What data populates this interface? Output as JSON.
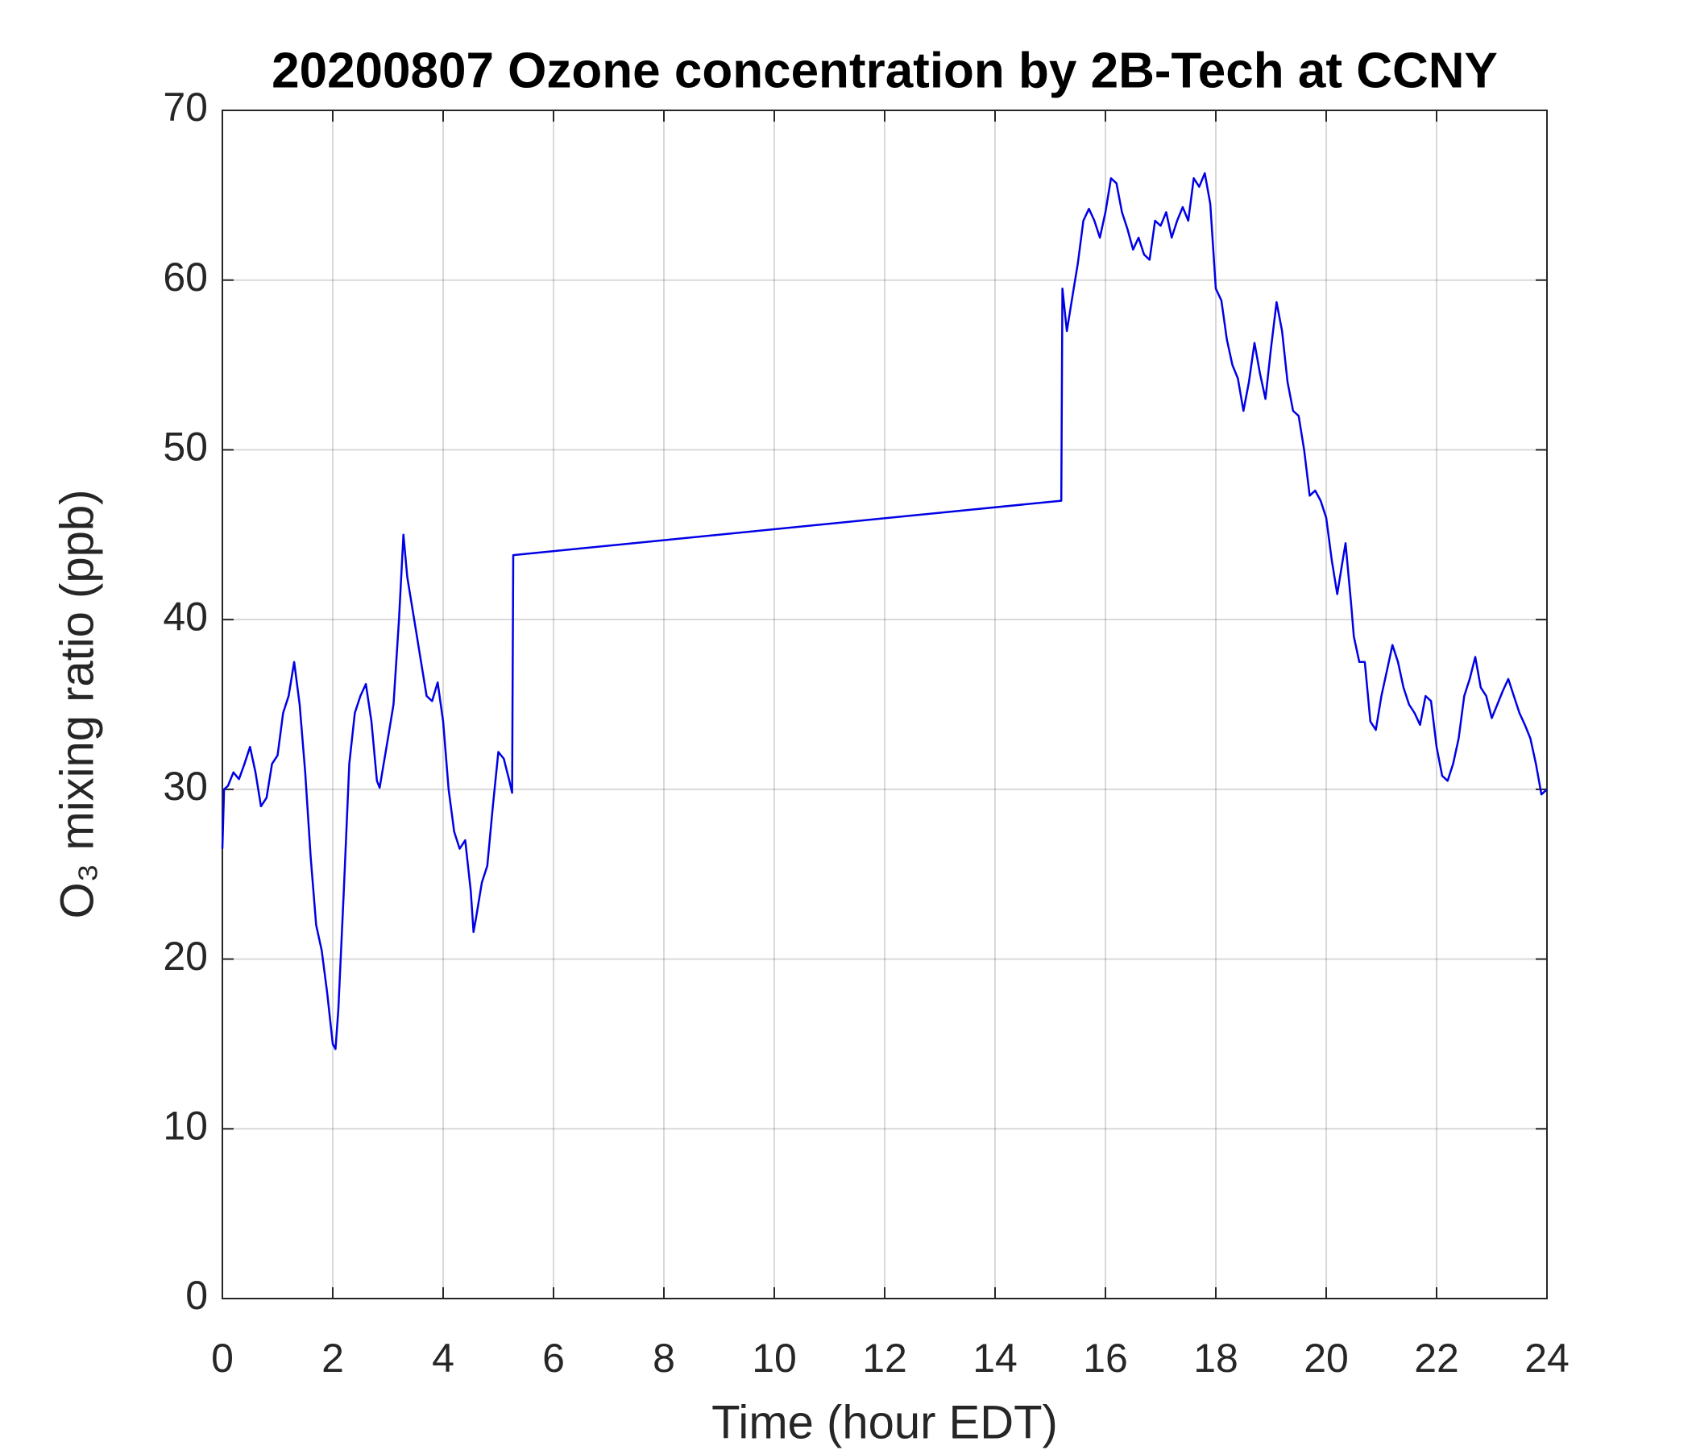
{
  "chart_data": {
    "type": "line",
    "title": "20200807 Ozone concentration by 2B-Tech at CCNY",
    "x_label": "Time (hour EDT)",
    "y_label": "O₃ mixing ratio (ppb)",
    "xlim": [
      0,
      24
    ],
    "xticks": [
      0,
      2,
      4,
      6,
      8,
      10,
      12,
      14,
      16,
      18,
      20,
      22,
      24
    ],
    "ylim": [
      0,
      70
    ],
    "yticks": [
      0,
      10,
      20,
      30,
      40,
      50,
      60,
      70
    ],
    "grid": true,
    "series": [
      {
        "name": "O3",
        "color": "#0000e6",
        "x": [
          0,
          0.03,
          0.1,
          0.2,
          0.3,
          0.4,
          0.5,
          0.6,
          0.7,
          0.8,
          0.9,
          1.0,
          1.1,
          1.2,
          1.3,
          1.4,
          1.5,
          1.6,
          1.7,
          1.8,
          1.9,
          2.0,
          2.05,
          2.1,
          2.2,
          2.3,
          2.4,
          2.5,
          2.6,
          2.7,
          2.8,
          2.85,
          3.0,
          3.1,
          3.2,
          3.28,
          3.35,
          3.5,
          3.6,
          3.7,
          3.8,
          3.9,
          4.0,
          4.1,
          4.2,
          4.3,
          4.4,
          4.5,
          4.55,
          4.6,
          4.7,
          4.8,
          4.9,
          5.0,
          5.1,
          5.2,
          5.25,
          5.27,
          15.2,
          15.22,
          15.3,
          15.4,
          15.5,
          15.6,
          15.7,
          15.8,
          15.9,
          16.0,
          16.1,
          16.2,
          16.3,
          16.4,
          16.5,
          16.6,
          16.7,
          16.8,
          16.9,
          17.0,
          17.1,
          17.2,
          17.3,
          17.4,
          17.5,
          17.6,
          17.7,
          17.8,
          17.9,
          18.0,
          18.1,
          18.2,
          18.3,
          18.4,
          18.5,
          18.6,
          18.7,
          18.8,
          18.9,
          19.0,
          19.1,
          19.2,
          19.3,
          19.4,
          19.5,
          19.6,
          19.7,
          19.8,
          19.9,
          20.0,
          20.1,
          20.2,
          20.3,
          20.35,
          20.45,
          20.5,
          20.6,
          20.7,
          20.8,
          20.9,
          21.0,
          21.1,
          21.2,
          21.3,
          21.4,
          21.5,
          21.6,
          21.7,
          21.8,
          21.9,
          22.0,
          22.1,
          22.2,
          22.3,
          22.4,
          22.5,
          22.6,
          22.7,
          22.8,
          22.9,
          23.0,
          23.1,
          23.2,
          23.3,
          23.4,
          23.5,
          23.6,
          23.7,
          23.8,
          23.9,
          24.0
        ],
        "values": [
          26.5,
          30,
          30.2,
          31,
          30.6,
          31.5,
          32.5,
          31,
          29,
          29.5,
          31.5,
          32,
          34.5,
          35.5,
          37.5,
          35,
          31,
          26,
          22,
          20.5,
          18,
          15,
          14.7,
          17,
          24,
          31.5,
          34.5,
          35.5,
          36.2,
          34,
          30.5,
          30.1,
          33,
          35,
          40,
          45,
          42.5,
          39.5,
          37.5,
          35.5,
          35.2,
          36.3,
          34,
          30,
          27.5,
          26.5,
          27,
          24,
          21.6,
          22.5,
          24.5,
          25.5,
          29,
          32.2,
          31.8,
          30.5,
          29.8,
          43.8,
          47,
          59.5,
          57,
          59,
          61,
          63.5,
          64.2,
          63.5,
          62.5,
          64,
          66,
          65.7,
          64,
          63,
          61.8,
          62.5,
          61.5,
          61.2,
          63.5,
          63.2,
          64,
          62.5,
          63.5,
          64.3,
          63.5,
          66,
          65.5,
          66.3,
          64.5,
          59.5,
          58.8,
          56.5,
          55,
          54.2,
          52.3,
          54,
          56.3,
          54.5,
          53,
          56,
          58.7,
          57,
          54,
          52.3,
          52,
          50,
          47.3,
          47.6,
          47,
          46,
          43.5,
          41.5,
          43.5,
          44.5,
          41,
          39,
          37.5,
          37.5,
          34,
          33.5,
          35.5,
          37,
          38.5,
          37.5,
          36,
          35,
          34.5,
          33.8,
          35.5,
          35.2,
          32.5,
          30.8,
          30.5,
          31.5,
          33,
          35.5,
          36.5,
          37.8,
          36,
          35.5,
          34.2,
          35,
          35.8,
          36.5,
          35.5,
          34.5,
          33.8,
          33,
          31.5,
          29.7,
          30
        ]
      }
    ]
  }
}
